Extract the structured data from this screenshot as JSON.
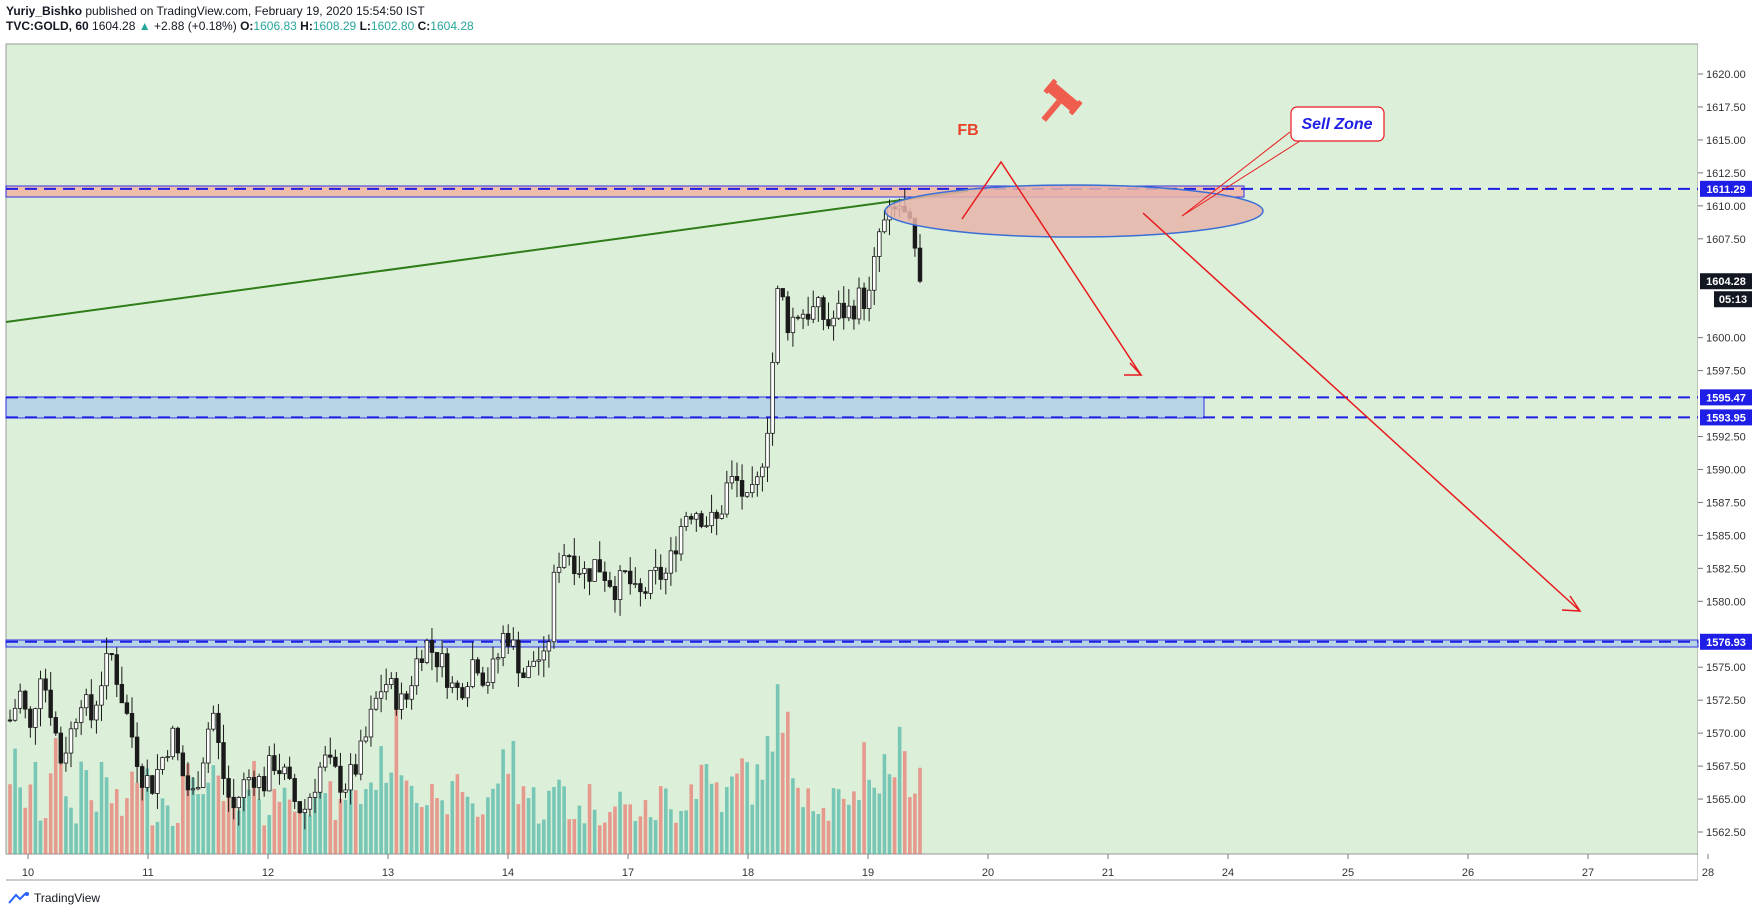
{
  "header": {
    "line1_author": "Yuriy_Bishko",
    "line1_rest": "published on TradingView.com, February 19, 2020 15:54:50 IST",
    "symbol": "TVC:GOLD, 60",
    "last": "1604.28",
    "change_arrow": "▲",
    "change": "+2.88 (+0.18%)",
    "o_label": "O:",
    "o": "1606.83",
    "h_label": "H:",
    "h": "1608.29",
    "l_label": "L:",
    "l": "1602.80",
    "c_label": "C:",
    "c": "1604.28"
  },
  "footer": {
    "brand": "TradingView"
  },
  "colors": {
    "bg": "#dcefd8",
    "up": "#26a69a",
    "down": "#ef5350",
    "level": "#1e1ee6",
    "arrow": "#e8191d",
    "trend": "#2e7d19"
  },
  "chart_data": {
    "type": "candlestick",
    "ylim": [
      1560,
      1622.5
    ],
    "y_ticks": [
      "1620.00",
      "1617.50",
      "1615.00",
      "1612.50",
      "1610.00",
      "1607.50",
      "1600.00",
      "1597.50",
      "1592.50",
      "1590.00",
      "1587.50",
      "1585.00",
      "1582.50",
      "1580.00",
      "1575.00",
      "1572.50",
      "1570.00",
      "1567.50",
      "1565.00",
      "1562.50"
    ],
    "x_ticks": [
      "10",
      "11",
      "12",
      "13",
      "14",
      "17",
      "18",
      "19",
      "20",
      "21",
      "24",
      "25",
      "26",
      "27",
      "28"
    ],
    "close_path": [
      1571,
      1573,
      1570,
      1575,
      1572,
      1568,
      1570,
      1573,
      1571,
      1574,
      1576,
      1573,
      1570,
      1567,
      1566,
      1568,
      1570,
      1567,
      1565,
      1568,
      1572,
      1567,
      1564,
      1566,
      1567,
      1566,
      1568,
      1567,
      1565,
      1564,
      1566,
      1568,
      1567,
      1566,
      1567,
      1569,
      1572,
      1574,
      1573,
      1572,
      1575,
      1577,
      1576,
      1575,
      1573,
      1574,
      1576,
      1574,
      1575,
      1578,
      1576,
      1574,
      1576,
      1575,
      1583,
      1584,
      1583,
      1582,
      1583,
      1582,
      1581,
      1582,
      1580,
      1581,
      1582,
      1582,
      1585,
      1587,
      1587,
      1586,
      1586,
      1589,
      1589,
      1587,
      1589,
      1594,
      1604,
      1601,
      1602,
      1602,
      1602,
      1601,
      1602,
      1602,
      1603,
      1603,
      1608,
      1609,
      1610,
      1608,
      1604.28
    ],
    "volume_path": [
      0.6,
      0.4,
      0.5,
      0.3,
      0.7,
      0.5,
      0.3,
      0.6,
      0.4,
      0.5,
      0.4,
      0.3,
      0.6,
      0.5,
      0.3,
      0.4,
      0.3,
      0.5,
      0.6,
      0.4,
      0.5,
      0.4,
      0.3,
      0.4,
      0.5,
      0.3,
      0.4,
      0.5,
      0.3,
      0.4,
      0.6,
      0.4,
      0.3,
      0.5,
      0.4,
      0.5,
      0.6,
      0.7,
      0.8,
      0.6,
      0.5,
      0.4,
      0.3,
      0.4,
      0.5,
      0.4,
      0.3,
      0.4,
      0.6,
      0.7,
      0.5,
      0.4,
      0.3,
      0.4,
      0.5,
      0.3,
      0.3,
      0.4,
      0.3,
      0.3,
      0.4,
      0.3,
      0.3,
      0.3,
      0.4,
      0.3,
      0.4,
      0.5,
      0.6,
      0.5,
      0.4,
      0.5,
      0.6,
      0.5,
      0.7,
      1.0,
      0.8,
      0.6,
      0.5,
      0.4,
      0.3,
      0.4,
      0.3,
      0.5,
      0.7,
      0.5,
      0.6,
      0.7,
      0.6,
      0.5,
      0.7
    ],
    "levels": [
      {
        "label": "1611.29",
        "value": 1611.29
      },
      {
        "label": "1595.47",
        "value": 1595.47
      },
      {
        "label": "1593.95",
        "value": 1593.95
      },
      {
        "label": "1576.93",
        "value": 1576.93
      }
    ],
    "price_tag": {
      "label": "1604.28",
      "value": 1604.28
    },
    "time_tag": "05:13",
    "annotations": {
      "fb": "FB",
      "sell_zone": "Sell Zone"
    }
  }
}
